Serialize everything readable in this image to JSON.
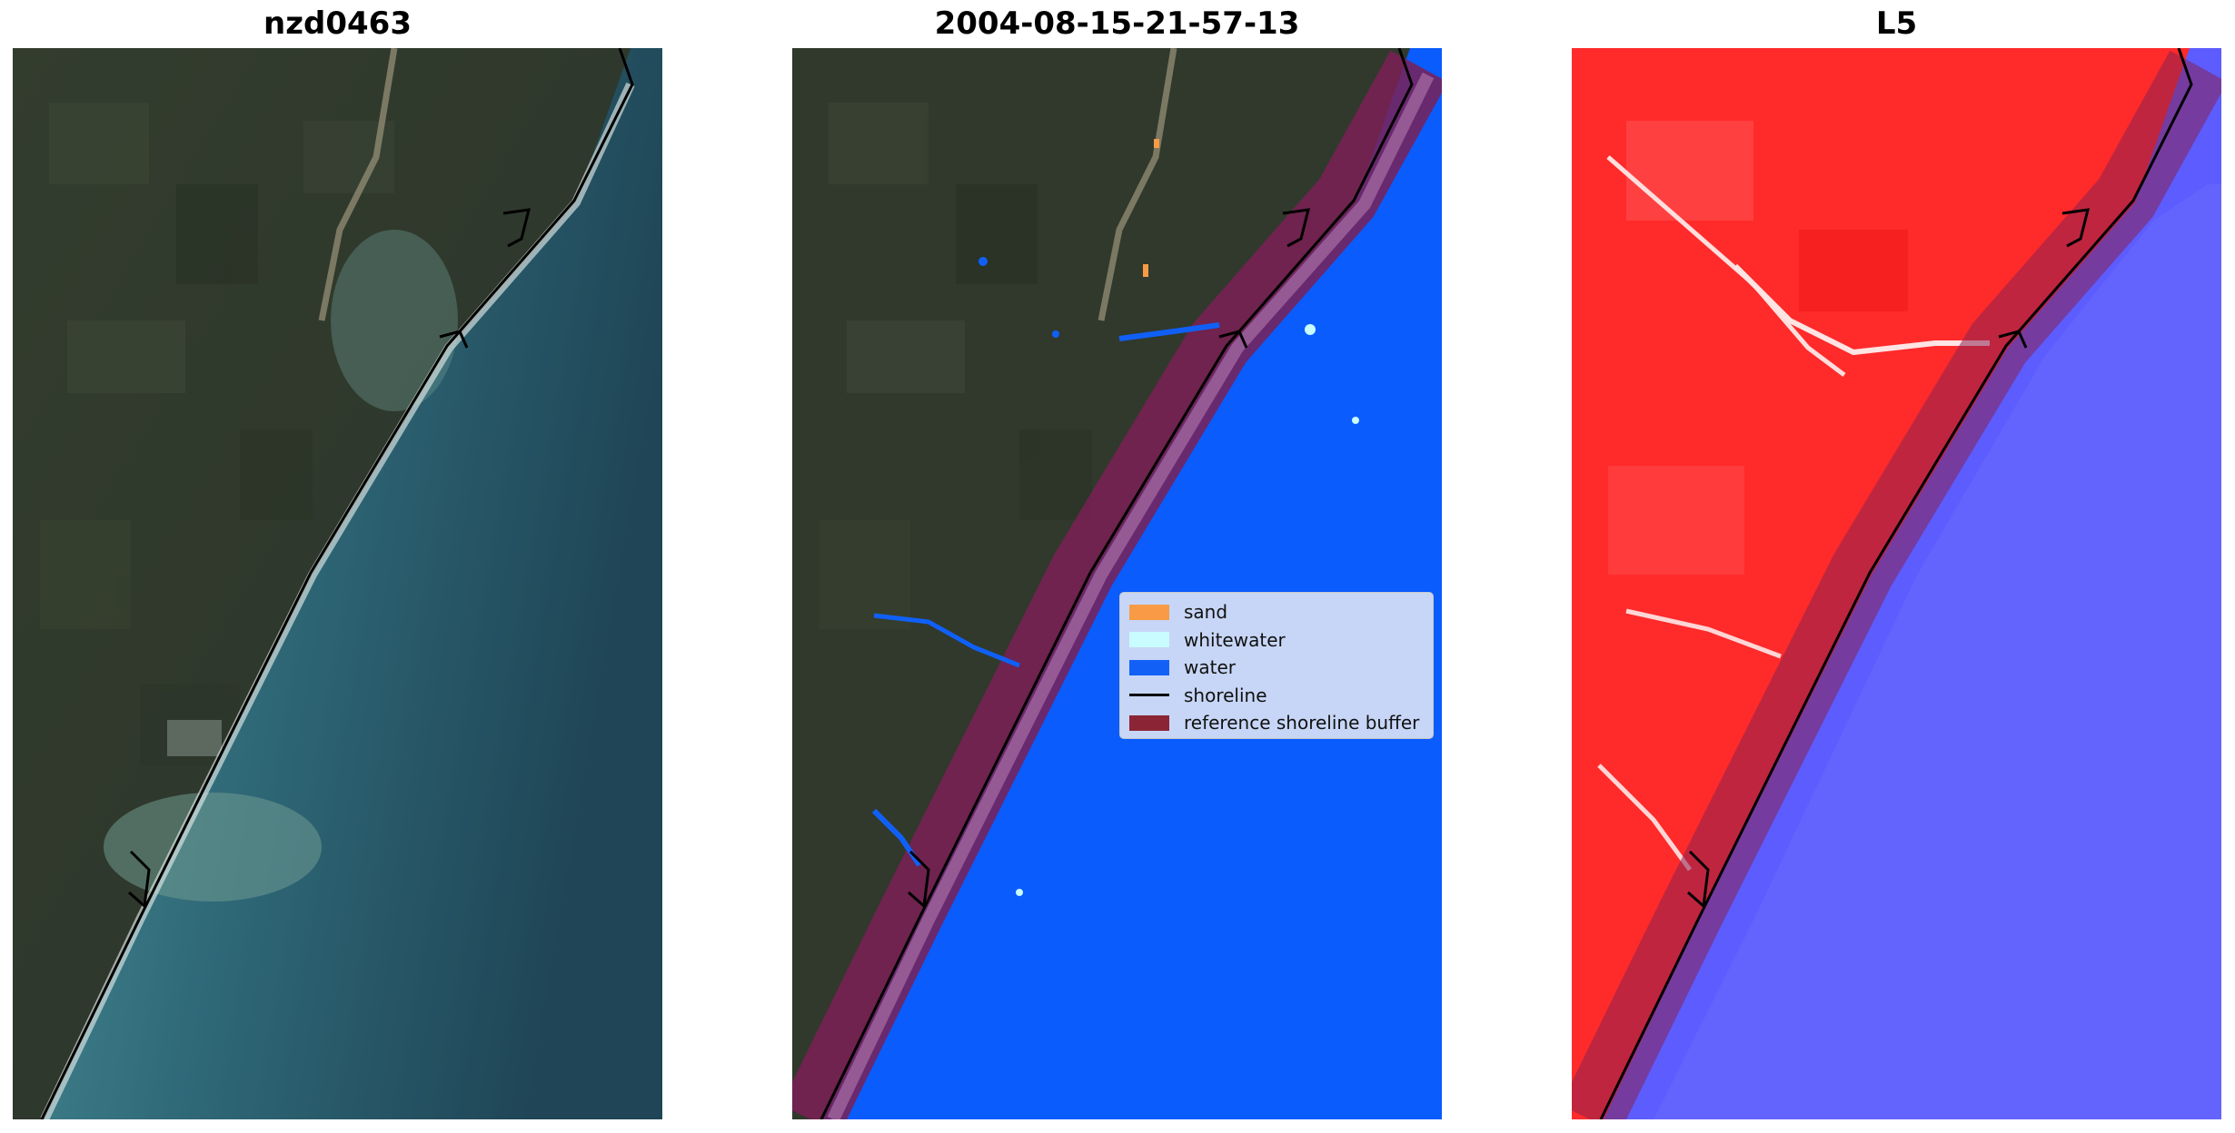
{
  "panels": [
    {
      "title": "nzd0463"
    },
    {
      "title": "2004-08-15-21-57-13"
    },
    {
      "title": "L5"
    }
  ],
  "legend": {
    "items": [
      {
        "label": "sand",
        "color": "#f89a46",
        "kind": "patch"
      },
      {
        "label": "whitewater",
        "color": "#c8fcff",
        "kind": "patch"
      },
      {
        "label": "water",
        "color": "#1360f7",
        "kind": "patch"
      },
      {
        "label": "shoreline",
        "color": "#000000",
        "kind": "line"
      },
      {
        "label": "reference shoreline buffer",
        "color": "#8b2535",
        "kind": "patch"
      }
    ]
  },
  "colors": {
    "land": "#2f3a2c",
    "ocean": "#2f6a78",
    "classified_water": "#0a5cfd",
    "buffer": "#7a2055",
    "index_land": "#ff2a2a",
    "index_water": "#5c5cff"
  }
}
